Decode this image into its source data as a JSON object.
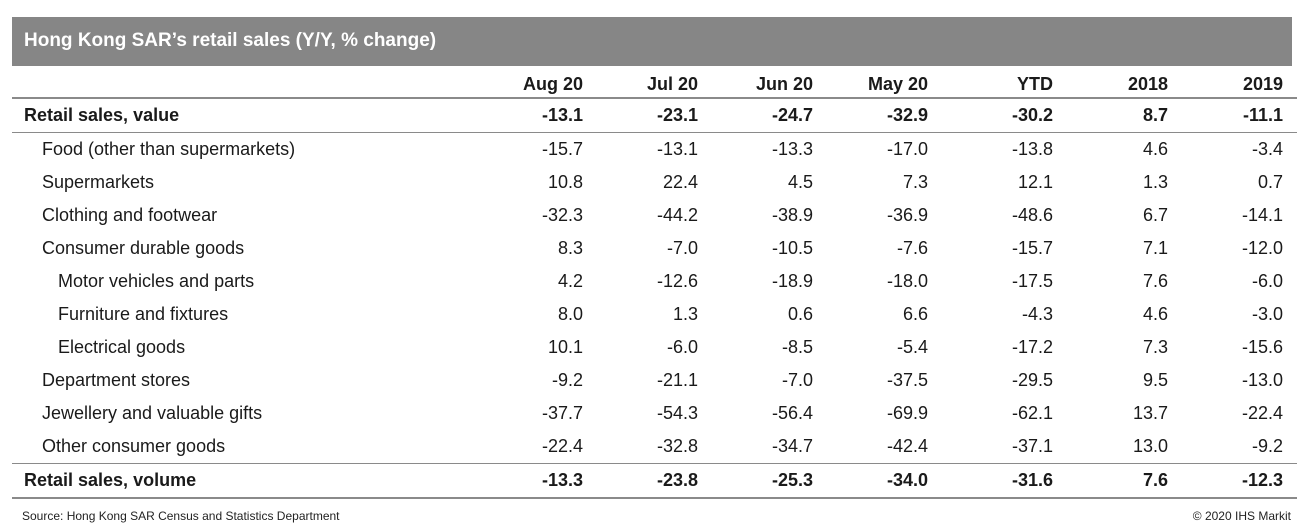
{
  "title": "Hong Kong SAR’s retail sales (Y/Y, % change)",
  "chart_data": {
    "type": "table",
    "title": "Hong Kong SAR’s retail sales (Y/Y, % change)",
    "columns": [
      "Aug 20",
      "Jul 20",
      "Jun 20",
      "May 20",
      "YTD",
      "2018",
      "2019"
    ],
    "rows": [
      {
        "label": "Retail sales, value",
        "level": 0,
        "bold": true,
        "values": [
          "-13.1",
          "-23.1",
          "-24.7",
          "-32.9",
          "-30.2",
          "8.7",
          "-11.1"
        ]
      },
      {
        "label": "Food (other than supermarkets)",
        "level": 1,
        "bold": false,
        "values": [
          "-15.7",
          "-13.1",
          "-13.3",
          "-17.0",
          "-13.8",
          "4.6",
          "-3.4"
        ]
      },
      {
        "label": "Supermarkets",
        "level": 1,
        "bold": false,
        "values": [
          "10.8",
          "22.4",
          "4.5",
          "7.3",
          "12.1",
          "1.3",
          "0.7"
        ]
      },
      {
        "label": "Clothing and footwear",
        "level": 1,
        "bold": false,
        "values": [
          "-32.3",
          "-44.2",
          "-38.9",
          "-36.9",
          "-48.6",
          "6.7",
          "-14.1"
        ]
      },
      {
        "label": "Consumer durable goods",
        "level": 1,
        "bold": false,
        "values": [
          "8.3",
          "-7.0",
          "-10.5",
          "-7.6",
          "-15.7",
          "7.1",
          "-12.0"
        ]
      },
      {
        "label": "Motor vehicles and parts",
        "level": 2,
        "bold": false,
        "values": [
          "4.2",
          "-12.6",
          "-18.9",
          "-18.0",
          "-17.5",
          "7.6",
          "-6.0"
        ]
      },
      {
        "label": "Furniture and fixtures",
        "level": 2,
        "bold": false,
        "values": [
          "8.0",
          "1.3",
          "0.6",
          "6.6",
          "-4.3",
          "4.6",
          "-3.0"
        ]
      },
      {
        "label": "Electrical goods",
        "level": 2,
        "bold": false,
        "values": [
          "10.1",
          "-6.0",
          "-8.5",
          "-5.4",
          "-17.2",
          "7.3",
          "-15.6"
        ]
      },
      {
        "label": "Department stores",
        "level": 1,
        "bold": false,
        "values": [
          "-9.2",
          "-21.1",
          "-7.0",
          "-37.5",
          "-29.5",
          "9.5",
          "-13.0"
        ]
      },
      {
        "label": "Jewellery and valuable gifts",
        "level": 1,
        "bold": false,
        "values": [
          "-37.7",
          "-54.3",
          "-56.4",
          "-69.9",
          "-62.1",
          "13.7",
          "-22.4"
        ]
      },
      {
        "label": "Other consumer goods",
        "level": 1,
        "bold": false,
        "values": [
          "-22.4",
          "-32.8",
          "-34.7",
          "-42.4",
          "-37.1",
          "13.0",
          "-9.2"
        ]
      },
      {
        "label": "Retail sales, volume",
        "level": 0,
        "bold": true,
        "values": [
          "-13.3",
          "-23.8",
          "-25.3",
          "-34.0",
          "-31.6",
          "7.6",
          "-12.3"
        ]
      }
    ]
  },
  "footer": {
    "source": "Source: Hong Kong SAR Census and Statistics Department",
    "copyright": "© 2020 IHS Markit"
  }
}
